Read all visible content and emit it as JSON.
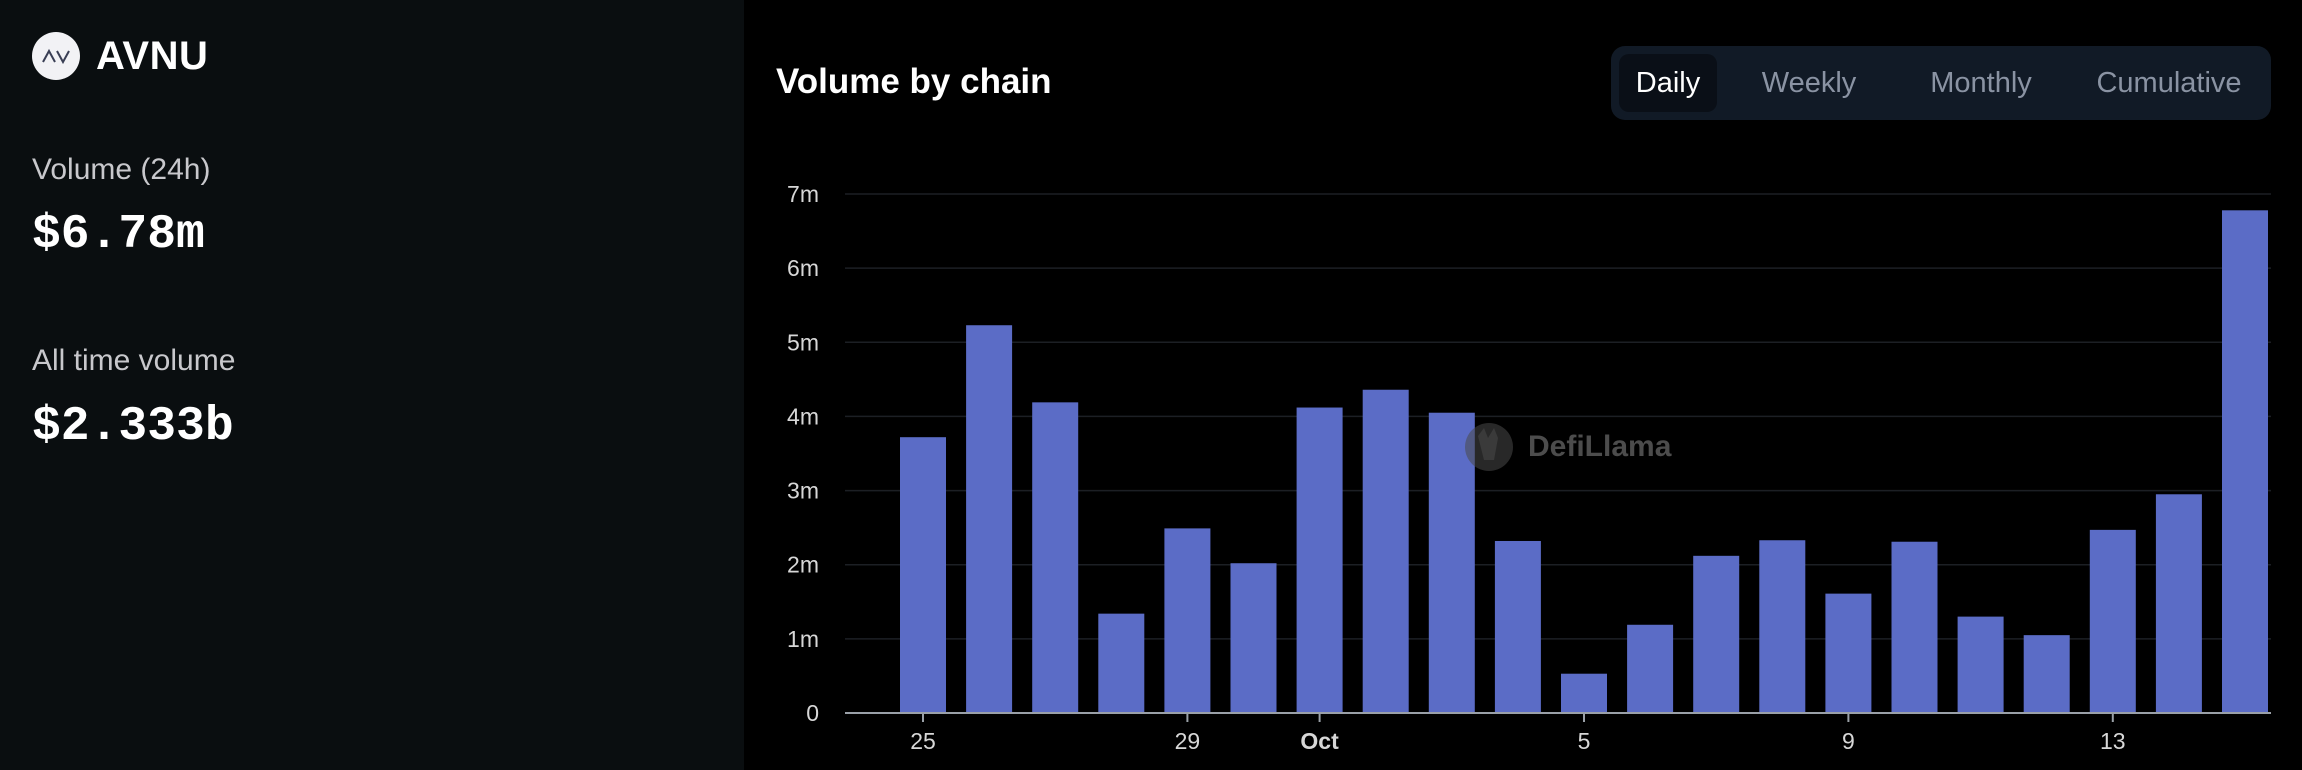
{
  "sidebar": {
    "brand_name": "AVNU",
    "logo_text": "AV",
    "stats": [
      {
        "label": "Volume (24h)",
        "value": "$6.78m"
      },
      {
        "label": "All time volume",
        "value": "$2.333b"
      }
    ]
  },
  "chart_panel": {
    "title": "Volume by chain",
    "tabs": [
      {
        "label": "Daily",
        "active": true
      },
      {
        "label": "Weekly",
        "active": false
      },
      {
        "label": "Monthly",
        "active": false
      },
      {
        "label": "Cumulative",
        "active": false
      }
    ],
    "watermark": "DefiLlama"
  },
  "colors": {
    "bar": "#5b6cc6",
    "grid": "#1c1f24",
    "axis": "#9aa0a8",
    "tick_text": "#d7d7d7",
    "accent_bg": "#111a26"
  },
  "chart_data": {
    "type": "bar",
    "title": "Volume by chain",
    "xlabel": "",
    "ylabel": "",
    "categories": [
      "Sep 25",
      "Sep 26",
      "Sep 27",
      "Sep 28",
      "Sep 29",
      "Sep 30",
      "Oct 1",
      "Oct 2",
      "Oct 3",
      "Oct 4",
      "Oct 5",
      "Oct 6",
      "Oct 7",
      "Oct 8",
      "Oct 9",
      "Oct 10",
      "Oct 11",
      "Oct 12",
      "Oct 13",
      "Oct 14",
      "Oct 15"
    ],
    "values": [
      3.72,
      5.23,
      4.19,
      1.34,
      2.49,
      2.02,
      4.12,
      4.36,
      4.05,
      2.32,
      0.53,
      1.19,
      2.12,
      2.33,
      1.61,
      2.31,
      1.3,
      1.05,
      2.47,
      2.95,
      6.78
    ],
    "value_unit": "millions USD",
    "ylim": [
      0,
      7
    ],
    "y_ticks": [
      {
        "value": 0,
        "label": "0"
      },
      {
        "value": 1,
        "label": "1m"
      },
      {
        "value": 2,
        "label": "2m"
      },
      {
        "value": 3,
        "label": "3m"
      },
      {
        "value": 4,
        "label": "4m"
      },
      {
        "value": 5,
        "label": "5m"
      },
      {
        "value": 6,
        "label": "6m"
      },
      {
        "value": 7,
        "label": "7m"
      }
    ],
    "x_ticks": [
      {
        "index": 0,
        "label": "25",
        "bold": false
      },
      {
        "index": 4,
        "label": "29",
        "bold": false
      },
      {
        "index": 6,
        "label": "Oct",
        "bold": true
      },
      {
        "index": 10,
        "label": "5",
        "bold": false
      },
      {
        "index": 14,
        "label": "9",
        "bold": false
      },
      {
        "index": 18,
        "label": "13",
        "bold": false
      }
    ],
    "grid": true,
    "legend": "none"
  }
}
